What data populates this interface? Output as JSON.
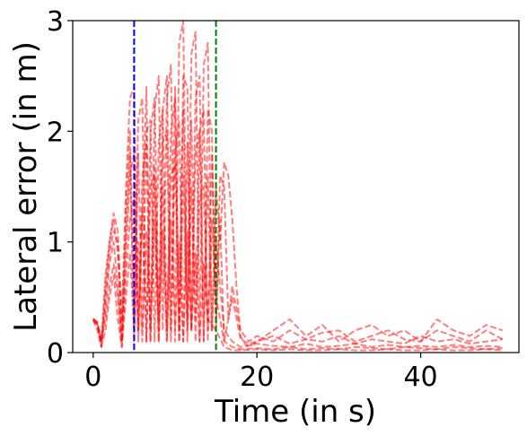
{
  "chart_data": {
    "type": "line",
    "title": "",
    "xlabel": "Time (in s)",
    "ylabel": "Lateral error (in m)",
    "xlim": [
      -2.5,
      52
    ],
    "ylim": [
      0,
      3
    ],
    "xticks": [
      0,
      20,
      40
    ],
    "xtick_labels": [
      "0",
      "20",
      "40"
    ],
    "yticks": [
      0,
      1,
      2,
      3
    ],
    "ytick_labels": [
      "0",
      "1",
      "2",
      "3"
    ],
    "grid": false,
    "legend": "none",
    "line_style": "dashed",
    "line_color": "#ff0000",
    "line_alpha": 0.5,
    "vlines": [
      {
        "x": 5,
        "color": "#0000ff",
        "style": "dashed"
      },
      {
        "x": 15,
        "color": "#008000",
        "style": "dashed"
      }
    ],
    "series": [
      {
        "x": [
          0,
          0.5,
          1,
          1.5,
          2,
          2.5,
          3,
          3.5,
          4,
          4.5,
          5,
          5.5,
          6,
          6.5,
          7,
          7.5,
          8,
          8.5,
          9,
          9.5,
          10,
          10.5,
          11,
          11.5,
          12,
          12.5,
          13,
          13.5,
          14,
          14.5,
          15,
          15.5,
          16,
          16.5,
          17,
          17.5,
          18,
          18.5,
          19,
          20,
          22,
          24,
          26,
          28,
          30,
          32,
          34,
          36,
          38,
          40,
          42,
          44,
          46,
          48,
          50
        ],
        "y": [
          0.3,
          0.28,
          0.05,
          0.6,
          1.0,
          1.26,
          1.1,
          0.3,
          1.5,
          2.3,
          2.4,
          0.2,
          1.2,
          2.4,
          0.1,
          2.2,
          2.5,
          0.2,
          2.3,
          2.6,
          0.1,
          2.8,
          3.0,
          0.3,
          2.7,
          2.9,
          0.1,
          2.6,
          2.8,
          0.2,
          1.5,
          1.0,
          1.72,
          1.6,
          1.2,
          0.6,
          0.15,
          0.08,
          0.05,
          0.1,
          0.2,
          0.3,
          0.15,
          0.25,
          0.1,
          0.2,
          0.25,
          0.15,
          0.2,
          0.1,
          0.3,
          0.2,
          0.15,
          0.25,
          0.2
        ]
      },
      {
        "x": [
          0,
          0.5,
          1,
          1.5,
          2,
          2.5,
          3,
          3.5,
          4,
          4.5,
          5,
          5.5,
          6,
          6.5,
          7,
          7.5,
          8,
          8.5,
          9,
          9.5,
          10,
          10.5,
          11,
          11.5,
          12,
          12.5,
          13,
          13.5,
          14,
          14.5,
          15,
          15.5,
          16,
          16.5,
          17,
          18,
          19,
          20,
          22,
          24,
          26,
          28,
          30,
          32,
          34,
          36,
          38,
          40,
          42,
          44,
          46,
          48,
          50
        ],
        "y": [
          0.28,
          0.25,
          0.1,
          0.7,
          1.0,
          1.2,
          0.9,
          0.1,
          1.3,
          2.0,
          0.3,
          2.1,
          2.3,
          0.1,
          2.0,
          2.3,
          0.3,
          2.2,
          2.5,
          0.2,
          2.4,
          0.1,
          2.5,
          2.4,
          0.2,
          2.3,
          2.5,
          0.1,
          2.2,
          2.0,
          0.2,
          1.6,
          1.5,
          0.3,
          0.6,
          0.2,
          0.1,
          0.15,
          0.1,
          0.2,
          0.12,
          0.18,
          0.2,
          0.1,
          0.15,
          0.2,
          0.12,
          0.1,
          0.2,
          0.15,
          0.1,
          0.2,
          0.12
        ]
      },
      {
        "x": [
          0,
          0.5,
          1,
          1.5,
          2,
          2.5,
          3,
          3.5,
          4,
          4.5,
          5,
          5.5,
          6,
          6.5,
          7,
          7.5,
          8,
          8.5,
          9,
          9.5,
          10,
          10.5,
          11,
          11.5,
          12,
          12.5,
          13,
          13.5,
          14,
          14.5,
          15,
          15.5,
          16,
          17,
          18,
          19,
          20,
          22,
          24,
          26,
          28,
          30,
          32,
          34,
          36,
          38,
          40,
          42,
          44,
          46,
          48,
          50
        ],
        "y": [
          0.3,
          0.2,
          0.05,
          0.5,
          0.9,
          1.1,
          1.0,
          0.2,
          1.1,
          1.8,
          0.1,
          1.8,
          0.2,
          2.0,
          2.1,
          0.1,
          1.9,
          2.2,
          0.1,
          2.0,
          2.3,
          0.2,
          2.2,
          0.1,
          2.1,
          0.3,
          2.0,
          2.2,
          0.1,
          1.8,
          0.3,
          1.2,
          0.1,
          0.5,
          0.12,
          0.08,
          0.1,
          0.15,
          0.08,
          0.12,
          0.1,
          0.15,
          0.08,
          0.12,
          0.1,
          0.08,
          0.15,
          0.1,
          0.12,
          0.08,
          0.1,
          0.12
        ]
      },
      {
        "x": [
          0,
          0.5,
          1,
          1.5,
          2,
          2.5,
          3,
          3.5,
          4,
          4.5,
          5,
          5.5,
          6,
          6.5,
          7,
          7.5,
          8,
          8.5,
          9,
          9.5,
          10,
          10.5,
          11,
          11.5,
          12,
          12.5,
          13,
          13.5,
          14,
          14.5,
          15,
          16,
          17,
          18,
          20,
          22,
          24,
          26,
          28,
          30,
          32,
          34,
          36,
          38,
          40,
          42,
          44,
          46,
          48,
          50
        ],
        "y": [
          0.29,
          0.26,
          0.08,
          0.4,
          0.8,
          1.0,
          0.6,
          0.05,
          0.9,
          1.6,
          1.8,
          0.1,
          1.6,
          1.9,
          0.1,
          1.7,
          0.2,
          1.9,
          2.0,
          0.1,
          1.8,
          2.1,
          0.1,
          1.9,
          0.2,
          1.8,
          2.0,
          0.1,
          1.6,
          0.2,
          1.0,
          0.2,
          0.1,
          0.05,
          0.08,
          0.06,
          0.05,
          0.08,
          0.05,
          0.06,
          0.08,
          0.05,
          0.07,
          0.05,
          0.06,
          0.05,
          0.07,
          0.05,
          0.06,
          0.05
        ]
      },
      {
        "x": [
          0,
          0.5,
          1,
          1.5,
          2,
          2.5,
          3,
          3.5,
          4,
          4.5,
          5,
          5.5,
          6,
          6.5,
          7,
          7.5,
          8,
          8.5,
          9,
          9.5,
          10,
          10.5,
          11,
          11.5,
          12,
          12.5,
          13,
          13.5,
          14,
          14.5,
          15,
          16,
          17,
          18,
          20,
          22,
          24,
          26,
          28,
          30,
          32,
          34,
          36,
          38,
          40,
          42,
          44,
          46,
          48,
          50
        ],
        "y": [
          0.31,
          0.27,
          0.12,
          0.3,
          0.6,
          0.8,
          0.5,
          0.1,
          0.7,
          1.2,
          1.4,
          0.2,
          1.3,
          0.1,
          1.5,
          1.6,
          0.1,
          1.5,
          0.2,
          1.6,
          1.7,
          0.1,
          1.6,
          0.2,
          1.5,
          0.1,
          1.4,
          1.5,
          0.2,
          1.2,
          0.5,
          0.1,
          0.05,
          0.03,
          0.04,
          0.03,
          0.05,
          0.03,
          0.04,
          0.03,
          0.05,
          0.04,
          0.03,
          0.05,
          0.04,
          0.03,
          0.05,
          0.04,
          0.03,
          0.04
        ]
      },
      {
        "x": [
          0,
          0.5,
          1,
          1.5,
          2,
          2.5,
          3,
          3.5,
          4,
          4.5,
          5,
          5.5,
          6,
          6.5,
          7,
          7.5,
          8,
          8.5,
          9,
          9.5,
          10,
          10.5,
          11,
          11.5,
          12,
          12.5,
          13,
          13.5,
          14,
          15,
          16,
          17,
          18,
          20,
          22,
          24,
          26,
          28,
          30,
          32,
          34,
          36,
          38,
          40,
          42,
          44,
          46,
          48,
          50
        ],
        "y": [
          0.3,
          0.26,
          0.06,
          0.2,
          0.5,
          0.7,
          0.3,
          0.05,
          0.5,
          0.9,
          0.2,
          1.0,
          0.1,
          1.1,
          0.2,
          1.2,
          0.1,
          1.1,
          0.1,
          1.2,
          0.2,
          1.0,
          0.1,
          1.1,
          0.2,
          0.9,
          0.1,
          0.8,
          0.3,
          0.2,
          0.05,
          0.02,
          0.02,
          0.03,
          0.02,
          0.03,
          0.02,
          0.02,
          0.03,
          0.02,
          0.02,
          0.03,
          0.02,
          0.02,
          0.03,
          0.02,
          0.02,
          0.03,
          0.02
        ]
      }
    ]
  }
}
